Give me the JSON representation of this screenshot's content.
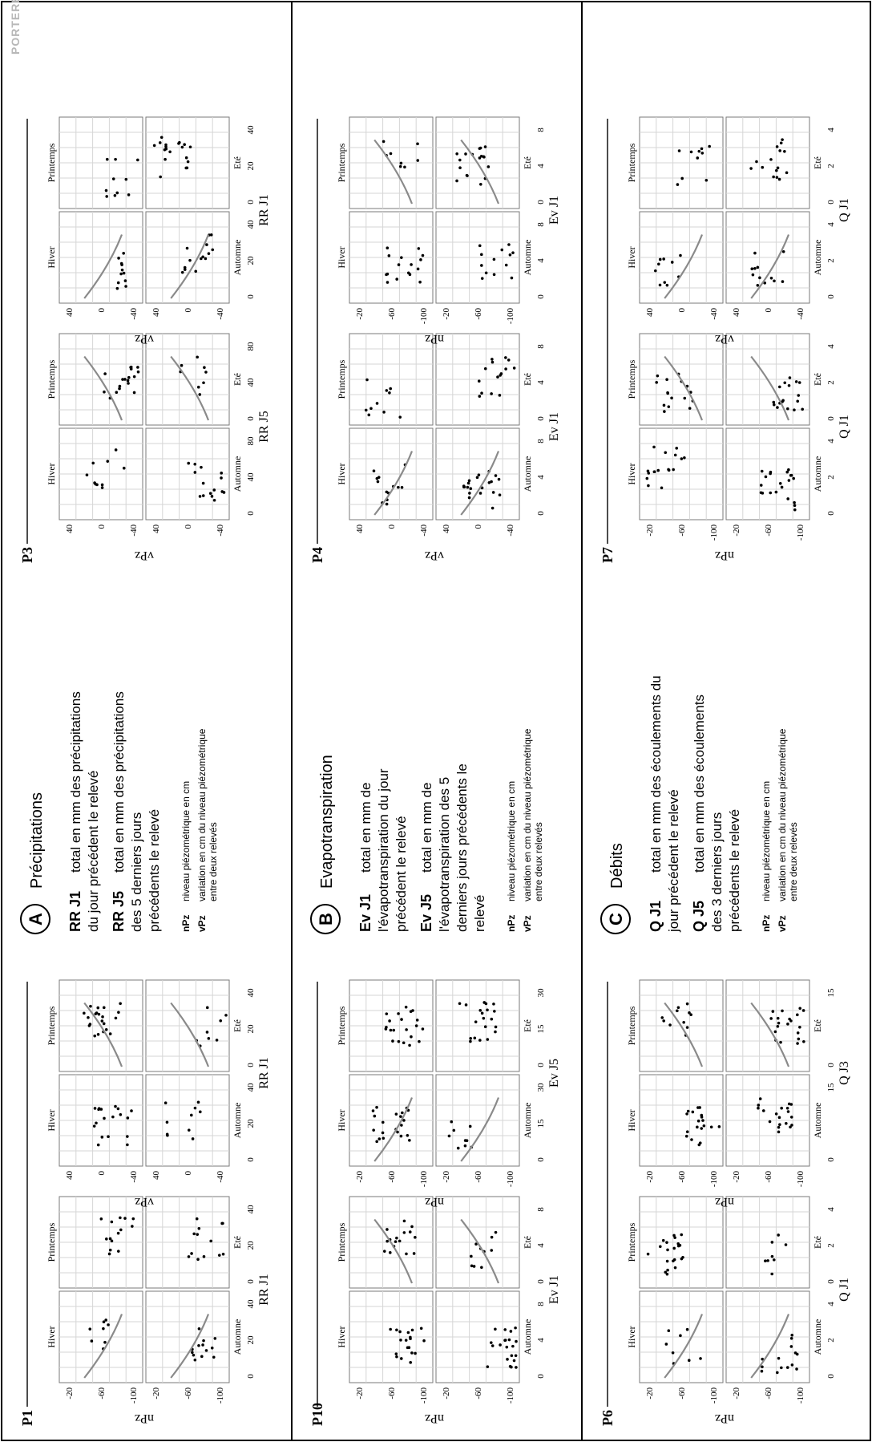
{
  "watermark": "PORTERET Jérôme",
  "rows": [
    {
      "left_group": {
        "label": "P1",
        "panels": [
          {
            "ylabel": "nPz",
            "xlabel": "RR J1",
            "yticks": [
              "-20",
              "-60",
              "-100"
            ],
            "xticks": [
              "0",
              "20",
              "40"
            ]
          },
          {
            "ylabel": "vPz",
            "xlabel": "RR J1",
            "yticks": [
              "40",
              "0",
              "-40"
            ],
            "xticks": [
              "0",
              "20",
              "40"
            ]
          }
        ]
      },
      "legend": {
        "letter": "A",
        "title": "Précipitations",
        "items": [
          {
            "key": "RR J1",
            "desc": "total en mm des précipitations du jour précédent le relevé"
          },
          {
            "key": "RR J5",
            "desc": "total en mm des précipitations des 5 derniers jours précédents le relevé"
          }
        ],
        "small": [
          {
            "key": "nPz",
            "desc": "niveau piézométrique en cm"
          },
          {
            "key": "vPz",
            "desc": "variation en cm du niveau piézométrique entre deux relevés"
          }
        ]
      },
      "right_group": {
        "label": "P3",
        "panels": [
          {
            "ylabel": "vPz",
            "xlabel": "RR J5",
            "yticks": [
              "40",
              "0",
              "-40"
            ],
            "xticks": [
              "0",
              "40",
              "80"
            ]
          },
          {
            "ylabel": "vPz",
            "xlabel": "RR J1",
            "yticks": [
              "40",
              "0",
              "-40"
            ],
            "xticks": [
              "0",
              "20",
              "40"
            ]
          }
        ]
      }
    },
    {
      "left_group": {
        "label": "P10",
        "panels": [
          {
            "ylabel": "nPz",
            "xlabel": "Ev J1",
            "yticks": [
              "-20",
              "-60",
              "-100"
            ],
            "xticks": [
              "0",
              "4",
              "8"
            ]
          },
          {
            "ylabel": "nPz",
            "xlabel": "Ev J5",
            "yticks": [
              "-20",
              "-60",
              "-100"
            ],
            "xticks": [
              "0",
              "15",
              "30"
            ]
          }
        ]
      },
      "legend": {
        "letter": "B",
        "title": "Evapotranspiration",
        "items": [
          {
            "key": "Ev J1",
            "desc": "total en mm de l'évapotranspiration du jour précédent le relevé"
          },
          {
            "key": "Ev J5",
            "desc": "total en mm de l'évapotranspiration des 5 derniers jours précédents le relevé"
          }
        ],
        "small": [
          {
            "key": "nPz",
            "desc": "niveau piézométrique en cm"
          },
          {
            "key": "vPz",
            "desc": "variation en cm du niveau piézométrique entre deux relevés"
          }
        ]
      },
      "right_group": {
        "label": "P4",
        "panels": [
          {
            "ylabel": "vPz",
            "xlabel": "Ev J1",
            "yticks": [
              "40",
              "0",
              "-40"
            ],
            "xticks": [
              "0",
              "4",
              "8"
            ]
          },
          {
            "ylabel": "nPz",
            "xlabel": "Ev J1",
            "yticks": [
              "-20",
              "-60",
              "-100"
            ],
            "xticks": [
              "0",
              "4",
              "8"
            ]
          }
        ]
      }
    },
    {
      "left_group": {
        "label": "P6",
        "panels": [
          {
            "ylabel": "nPz",
            "xlabel": "Q J1",
            "yticks": [
              "-20",
              "-60",
              "-100"
            ],
            "xticks": [
              "0",
              "2",
              "4"
            ]
          },
          {
            "ylabel": "nPz",
            "xlabel": "Q J3",
            "yticks": [
              "-20",
              "-60",
              "-100"
            ],
            "xticks": [
              "0",
              "15"
            ]
          }
        ]
      },
      "legend": {
        "letter": "C",
        "title": "Débits",
        "items": [
          {
            "key": "Q J1",
            "desc": "total en mm des écoulements du jour précédent le relevé"
          },
          {
            "key": "Q J5",
            "desc": "total en mm des écoulements des 3 derniers jours précédents le relevé"
          }
        ],
        "small": [
          {
            "key": "nPz",
            "desc": "niveau piézométrique en cm"
          },
          {
            "key": "vPz",
            "desc": "variation en cm du niveau piézométrique entre deux relevés"
          }
        ]
      },
      "right_group": {
        "label": "P7",
        "panels": [
          {
            "ylabel": "nPz",
            "xlabel": "Q J1",
            "yticks": [
              "-20",
              "-60",
              "-100"
            ],
            "xticks": [
              "0",
              "2",
              "4"
            ]
          },
          {
            "ylabel": "vPz",
            "xlabel": "Q J1",
            "yticks": [
              "40",
              "0",
              "-40"
            ],
            "xticks": [
              "0",
              "2",
              "4"
            ]
          }
        ]
      }
    }
  ],
  "seasons": [
    "Hiver",
    "Printemps",
    "Automne",
    "Eté"
  ],
  "colors": {
    "point": "#000000",
    "trend": "#8a8a8a",
    "grid": "#d6d6d6",
    "frame": "#000000"
  },
  "chart_data": {
    "type": "scatter",
    "description_of_facets": [
      "Hiver",
      "Printemps",
      "Automne",
      "Eté"
    ],
    "trend": "smoothed grey line in selected facets"
  }
}
